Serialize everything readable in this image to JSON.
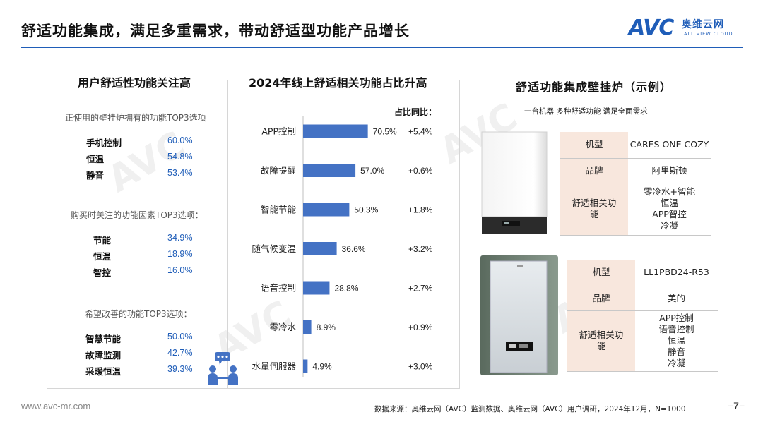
{
  "header": {
    "title": "舒适功能集成，满足多重需求，带动舒适型功能产品增长",
    "logo_mark": "AVC",
    "logo_cn": "奥维云网",
    "logo_en": "ALL VIEW CLOUD",
    "accent_color": "#1f5db8"
  },
  "left_panel": {
    "title": "用户舒适性功能关注高",
    "groups": [
      {
        "label": "正使用的壁挂炉拥有的功能TOP3选项",
        "items": [
          {
            "name": "手机控制",
            "value": "60.0%"
          },
          {
            "name": "恒温",
            "value": "54.8%"
          },
          {
            "name": "静音",
            "value": "53.4%"
          }
        ]
      },
      {
        "label": "购买时关注的功能因素TOP3选项：",
        "items": [
          {
            "name": "节能",
            "value": "34.9%"
          },
          {
            "name": "恒温",
            "value": "18.9%"
          },
          {
            "name": "智控",
            "value": "16.0%"
          }
        ]
      },
      {
        "label": "希望改善的功能TOP3选项：",
        "items": [
          {
            "name": "智慧节能",
            "value": "50.0%"
          },
          {
            "name": "故障监测",
            "value": "42.7%"
          },
          {
            "name": "采暖恒温",
            "value": "39.3%"
          }
        ]
      }
    ],
    "icon": "people-chat-icon"
  },
  "chart_data": {
    "type": "bar",
    "orientation": "horizontal",
    "title": "2024年线上舒适相关功能占比升高",
    "yoy_header": "占比同比：",
    "categories": [
      "APP控制",
      "故障提醒",
      "智能节能",
      "随气候变温",
      "语音控制",
      "零冷水",
      "水量伺服器"
    ],
    "values": [
      70.5,
      57.0,
      50.3,
      36.6,
      28.8,
      8.9,
      4.9
    ],
    "value_labels": [
      "70.5%",
      "57.0%",
      "50.3%",
      "36.6%",
      "28.8%",
      "8.9%",
      "4.9%"
    ],
    "yoy": [
      "+5.4%",
      "+0.6%",
      "+1.8%",
      "+3.2%",
      "+2.7%",
      "+0.9%",
      "+3.0%"
    ],
    "bar_color": "#4472c4",
    "xlim": [
      0,
      100
    ]
  },
  "right_panel": {
    "title": "舒适功能集成壁挂炉（示例）",
    "subtitle": "一台机器 多种舒适功能 满足全面需求",
    "products": [
      {
        "rows": [
          {
            "key": "机型",
            "value": [
              "CARES ONE COZY"
            ]
          },
          {
            "key": "品牌",
            "value": [
              "阿里斯顿"
            ]
          },
          {
            "key": "舒适相关功能",
            "value": [
              "零冷水+智能",
              "恒温",
              "APP智控",
              "冷凝"
            ]
          }
        ]
      },
      {
        "rows": [
          {
            "key": "机型",
            "value": [
              "LL1PBD24-R53"
            ]
          },
          {
            "key": "品牌",
            "value": [
              "美的"
            ]
          },
          {
            "key": "舒适相关功能",
            "value": [
              "APP控制",
              "语音控制",
              "恒温",
              "静音",
              "冷凝"
            ]
          }
        ]
      }
    ],
    "key_bg_color": "#f8e7dd"
  },
  "footer": {
    "website": "www.avc-mr.com",
    "source": "数据来源：奥维云网（AVC）监测数据、奥维云网（AVC）用户调研，2024年12月，N=1000",
    "page": "−7−"
  }
}
